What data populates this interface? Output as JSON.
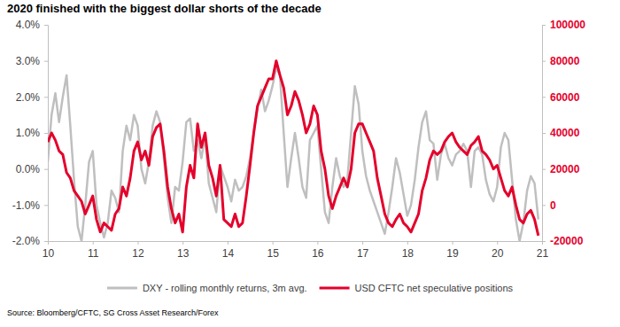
{
  "chart_data": {
    "type": "line",
    "title": "2020 finished with the biggest dollar shorts of the decade",
    "source": "Source: Bloomberg/CFTC, SG Cross Asset Research/Forex",
    "legend": "bottom",
    "grid": false,
    "x": [
      2010.0,
      2010.083,
      2010.167,
      2010.25,
      2010.333,
      2010.417,
      2010.5,
      2010.583,
      2010.667,
      2010.75,
      2010.833,
      2010.917,
      2011.0,
      2011.083,
      2011.167,
      2011.25,
      2011.333,
      2011.417,
      2011.5,
      2011.583,
      2011.667,
      2011.75,
      2011.833,
      2011.917,
      2012.0,
      2012.083,
      2012.167,
      2012.25,
      2012.333,
      2012.417,
      2012.5,
      2012.583,
      2012.667,
      2012.75,
      2012.833,
      2012.917,
      2013.0,
      2013.083,
      2013.167,
      2013.25,
      2013.333,
      2013.417,
      2013.5,
      2013.583,
      2013.667,
      2013.75,
      2013.833,
      2013.917,
      2014.0,
      2014.083,
      2014.167,
      2014.25,
      2014.333,
      2014.417,
      2014.5,
      2014.583,
      2014.667,
      2014.75,
      2014.833,
      2014.917,
      2015.0,
      2015.083,
      2015.167,
      2015.25,
      2015.333,
      2015.417,
      2015.5,
      2015.583,
      2015.667,
      2015.75,
      2015.833,
      2015.917,
      2016.0,
      2016.083,
      2016.167,
      2016.25,
      2016.333,
      2016.417,
      2016.5,
      2016.583,
      2016.667,
      2016.75,
      2016.833,
      2016.917,
      2017.0,
      2017.083,
      2017.167,
      2017.25,
      2017.333,
      2017.417,
      2017.5,
      2017.583,
      2017.667,
      2017.75,
      2017.833,
      2017.917,
      2018.0,
      2018.083,
      2018.167,
      2018.25,
      2018.333,
      2018.417,
      2018.5,
      2018.583,
      2018.667,
      2018.75,
      2018.833,
      2018.917,
      2019.0,
      2019.083,
      2019.167,
      2019.25,
      2019.333,
      2019.417,
      2019.5,
      2019.583,
      2019.667,
      2019.75,
      2019.833,
      2019.917,
      2020.0,
      2020.083,
      2020.167,
      2020.25,
      2020.333,
      2020.417,
      2020.5,
      2020.583,
      2020.667,
      2020.75,
      2020.833,
      2020.917
    ],
    "xlim": [
      2010,
      2021
    ],
    "xticks": [
      {
        "value": 2010,
        "label": "10"
      },
      {
        "value": 2011,
        "label": "11"
      },
      {
        "value": 2012,
        "label": "12"
      },
      {
        "value": 2013,
        "label": "13"
      },
      {
        "value": 2014,
        "label": "14"
      },
      {
        "value": 2015,
        "label": "15"
      },
      {
        "value": 2016,
        "label": "16"
      },
      {
        "value": 2017,
        "label": "17"
      },
      {
        "value": 2018,
        "label": "18"
      },
      {
        "value": 2019,
        "label": "19"
      },
      {
        "value": 2020,
        "label": "20"
      },
      {
        "value": 2021,
        "label": "21"
      }
    ],
    "ylim": [
      -2,
      4
    ],
    "yticks": [
      {
        "value": -2,
        "label": "-2.0%"
      },
      {
        "value": -1,
        "label": "-1.0%"
      },
      {
        "value": 0,
        "label": "0.0%"
      },
      {
        "value": 1,
        "label": "1.0%"
      },
      {
        "value": 2,
        "label": "2.0%"
      },
      {
        "value": 3,
        "label": "3.0%"
      },
      {
        "value": 4,
        "label": "4.0%"
      }
    ],
    "y2lim": [
      -20000,
      100000
    ],
    "y2ticks": [
      -20000,
      0,
      20000,
      40000,
      60000,
      80000,
      100000
    ],
    "series": [
      {
        "name": "DXY - rolling monthly returns, 3m avg.",
        "color": "#bfbfbf",
        "axis": "y",
        "values": [
          0.2,
          1.5,
          2.1,
          1.3,
          2.0,
          2.6,
          1.2,
          -0.3,
          -1.6,
          -2.0,
          -1.0,
          0.2,
          0.5,
          -1.0,
          -1.5,
          -1.9,
          -1.5,
          -0.6,
          -0.8,
          -1.2,
          0.5,
          1.2,
          0.8,
          1.5,
          1.2,
          0.0,
          -0.4,
          0.2,
          1.2,
          1.6,
          1.3,
          0.3,
          -0.8,
          -1.5,
          -0.5,
          -0.6,
          0.2,
          1.3,
          1.4,
          0.5,
          0.8,
          0.3,
          0.9,
          -0.4,
          -0.8,
          -1.2,
          0.1,
          -0.2,
          -0.5,
          -0.9,
          -0.3,
          -0.6,
          -0.5,
          -0.2,
          0.3,
          1.0,
          1.7,
          2.2,
          1.6,
          1.9,
          2.3,
          2.8,
          2.6,
          1.0,
          -0.5,
          0.3,
          1.0,
          0.3,
          -0.5,
          -0.8,
          0.8,
          1.0,
          1.2,
          0.0,
          -1.2,
          -1.5,
          -0.5,
          0.3,
          -0.2,
          -0.5,
          -0.3,
          1.0,
          2.3,
          1.8,
          0.5,
          -0.2,
          -0.6,
          -0.9,
          -1.2,
          -1.5,
          -1.8,
          -1.2,
          -0.5,
          0.3,
          -0.1,
          -0.7,
          -1.3,
          -1.0,
          -0.3,
          0.6,
          1.3,
          1.6,
          0.8,
          0.7,
          -0.3,
          0.4,
          0.7,
          0.3,
          0.1,
          0.4,
          0.5,
          0.7,
          0.5,
          -0.5,
          0.5,
          0.6,
          0.4,
          -0.3,
          -0.7,
          -0.9,
          -0.5,
          0.6,
          1.0,
          0.8,
          -0.3,
          -1.4,
          -2.0,
          -1.5,
          -0.6,
          -0.2,
          -0.4,
          -1.4
        ]
      },
      {
        "name": "USD CFTC net speculative positions",
        "color": "#e4002b",
        "axis": "y2",
        "values": [
          35000,
          40000,
          36000,
          30000,
          28000,
          18000,
          15000,
          8000,
          5000,
          2000,
          -5000,
          0,
          5000,
          -8000,
          -15000,
          -10000,
          -12000,
          -14000,
          -5000,
          -2000,
          10000,
          5000,
          15000,
          30000,
          35000,
          25000,
          30000,
          22000,
          38000,
          43000,
          45000,
          30000,
          10000,
          -2000,
          -10000,
          -5000,
          -15000,
          10000,
          22000,
          15000,
          45000,
          32000,
          40000,
          22000,
          15000,
          5000,
          22000,
          -8000,
          -10000,
          -12000,
          -5000,
          -12000,
          -10000,
          5000,
          22000,
          40000,
          55000,
          60000,
          65000,
          70000,
          70000,
          80000,
          72000,
          65000,
          50000,
          55000,
          63000,
          58000,
          50000,
          40000,
          45000,
          55000,
          50000,
          30000,
          20000,
          5000,
          -2000,
          5000,
          10000,
          15000,
          10000,
          20000,
          40000,
          45000,
          45000,
          40000,
          35000,
          30000,
          15000,
          5000,
          -5000,
          -10000,
          -12000,
          -8000,
          -5000,
          -10000,
          -12000,
          -15000,
          -10000,
          -5000,
          8000,
          15000,
          25000,
          30000,
          28000,
          30000,
          35000,
          38000,
          40000,
          35000,
          32000,
          30000,
          28000,
          33000,
          35000,
          38000,
          30000,
          28000,
          25000,
          20000,
          22000,
          15000,
          8000,
          5000,
          10000,
          0,
          -8000,
          -10000,
          -5000,
          -3000,
          -8000,
          -17000
        ]
      }
    ]
  }
}
